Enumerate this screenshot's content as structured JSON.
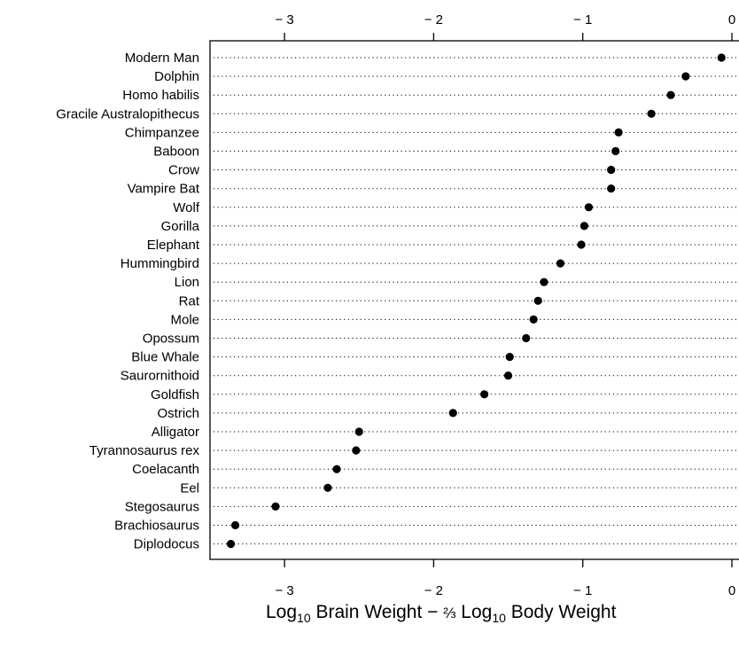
{
  "chart_data": {
    "type": "scatter",
    "title": "",
    "xlabel": {
      "log_prefix": "Log",
      "sub": "10",
      "part1": " Brain Weight − ",
      "frac": "⅔",
      "part2": " Body Weight"
    },
    "xlim": [
      -3.5,
      0.0
    ],
    "xticks": [
      -3,
      -2,
      -1,
      0
    ],
    "xtick_labels": [
      "− 3",
      "− 2",
      "− 1",
      "0"
    ],
    "grid": "dotted horizontal guide lines",
    "point_color": "#000000",
    "categories": [
      "Modern Man",
      "Dolphin",
      "Homo habilis",
      "Gracile Australopithecus",
      "Chimpanzee",
      "Baboon",
      "Crow",
      "Vampire Bat",
      "Wolf",
      "Gorilla",
      "Elephant",
      "Hummingbird",
      "Lion",
      "Rat",
      "Mole",
      "Opossum",
      "Blue Whale",
      "Saurornithoid",
      "Goldfish",
      "Ostrich",
      "Alligator",
      "Tyrannosaurus rex",
      "Coelacanth",
      "Eel",
      "Stegosaurus",
      "Brachiosaurus",
      "Diplodocus"
    ],
    "values": [
      -0.07,
      -0.31,
      -0.41,
      -0.54,
      -0.76,
      -0.78,
      -0.81,
      -0.81,
      -0.96,
      -0.99,
      -1.01,
      -1.15,
      -1.26,
      -1.3,
      -1.33,
      -1.38,
      -1.49,
      -1.5,
      -1.66,
      -1.87,
      -2.5,
      -2.52,
      -2.65,
      -2.71,
      -3.06,
      -3.33,
      -3.36
    ]
  }
}
